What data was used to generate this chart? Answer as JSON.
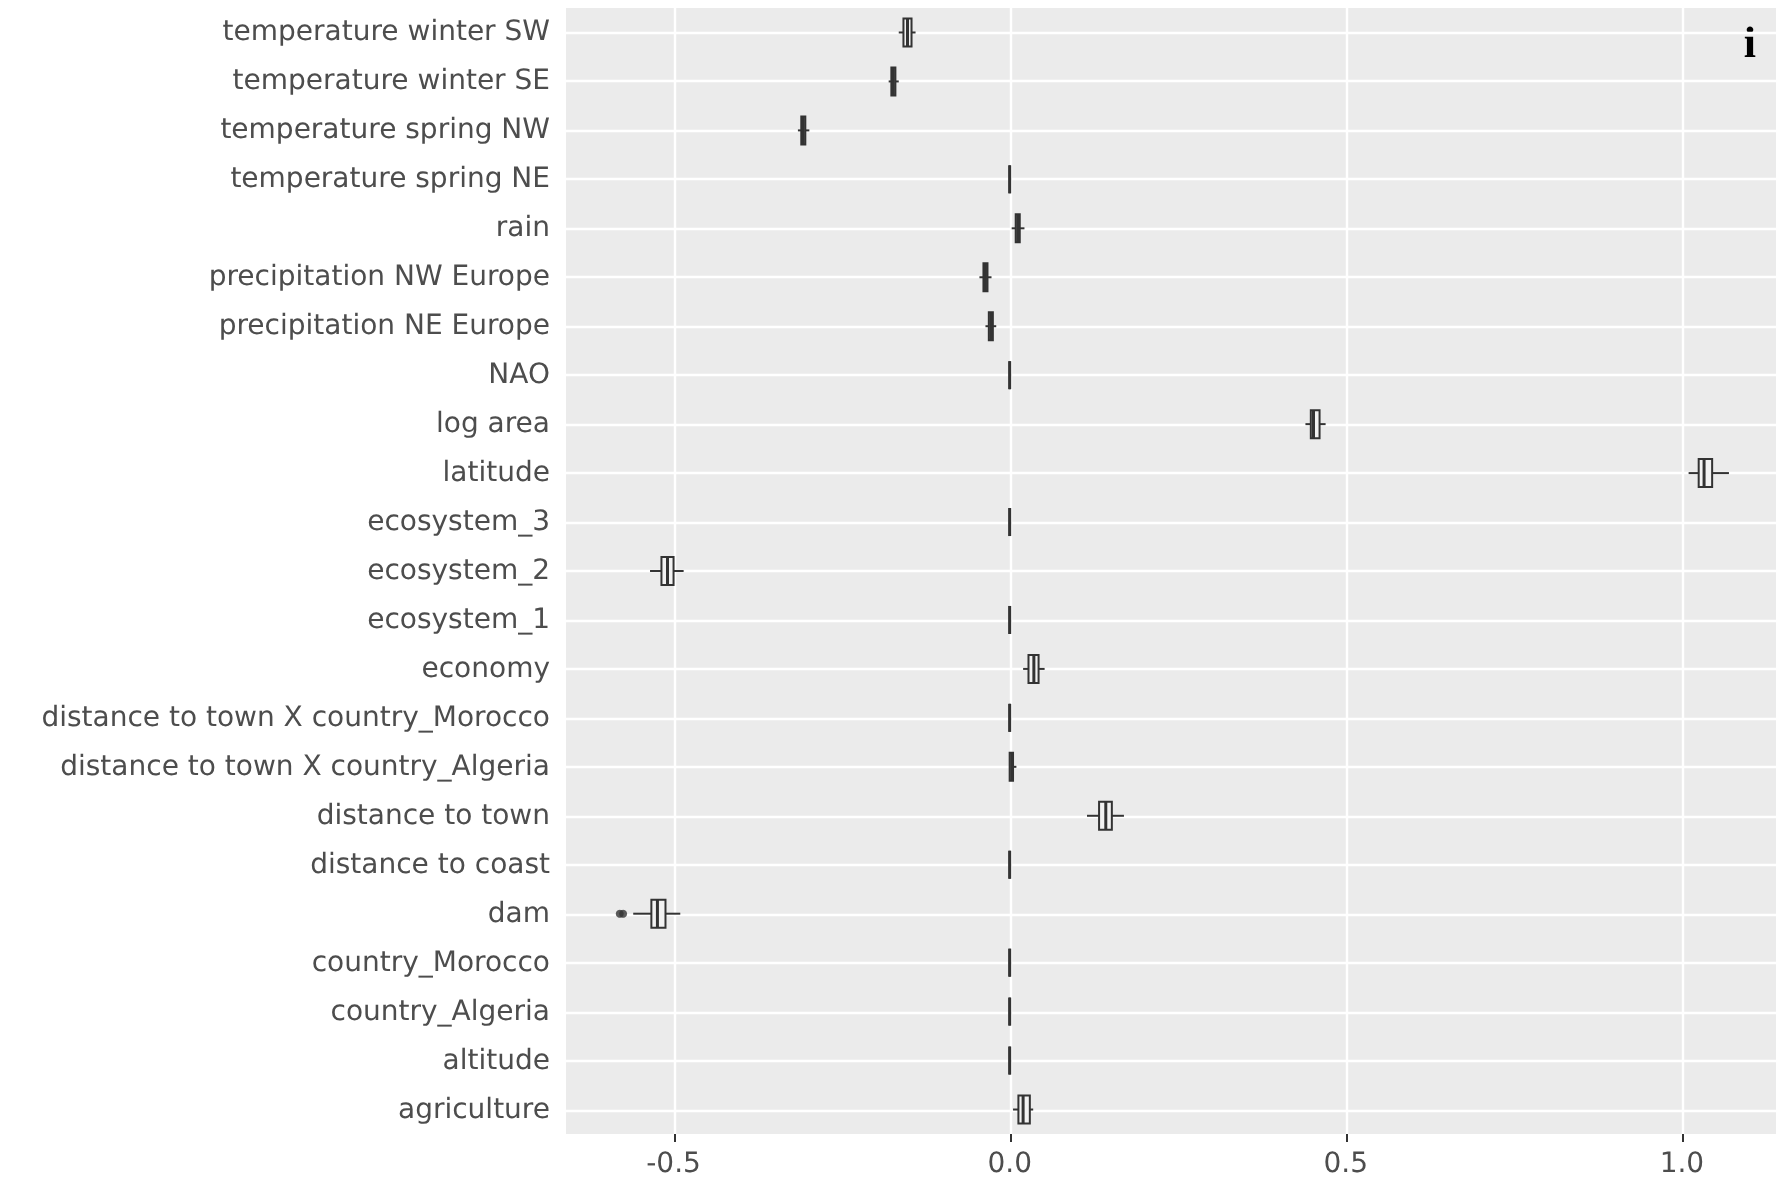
{
  "chart_data": {
    "type": "box",
    "orientation": "horizontal",
    "annotations": [
      "i"
    ],
    "categories": [
      "temperature winter SW",
      "temperature winter SE",
      "temperature spring NW",
      "temperature spring NE",
      "rain",
      "precipitation NW Europe",
      "precipitation NE Europe",
      "NAO",
      "log area",
      "latitude",
      "ecosystem_3",
      "ecosystem_2",
      "ecosystem_1",
      "economy",
      "distance to town X country_Morocco",
      "distance to town X country_Algeria",
      "distance to town",
      "distance to coast",
      "dam",
      "country_Morocco",
      "country_Algeria",
      "altitude",
      "agriculture"
    ],
    "boxes": [
      {
        "low": -0.165,
        "q1": -0.158,
        "median": -0.152,
        "q3": -0.146,
        "high": -0.14
      },
      {
        "low": -0.18,
        "q1": -0.176,
        "median": -0.173,
        "q3": -0.17,
        "high": -0.165
      },
      {
        "low": -0.315,
        "q1": -0.31,
        "median": -0.307,
        "q3": -0.304,
        "high": -0.298
      },
      {
        "low": 0,
        "q1": 0,
        "median": 0,
        "q3": 0,
        "high": 0
      },
      {
        "low": 0.003,
        "q1": 0.009,
        "median": 0.012,
        "q3": 0.015,
        "high": 0.022
      },
      {
        "low": -0.045,
        "q1": -0.039,
        "median": -0.036,
        "q3": -0.033,
        "high": -0.027
      },
      {
        "low": -0.036,
        "q1": -0.031,
        "median": -0.028,
        "q3": -0.025,
        "high": -0.02
      },
      {
        "low": 0,
        "q1": 0,
        "median": 0,
        "q3": 0,
        "high": 0
      },
      {
        "low": 0.44,
        "q1": 0.448,
        "median": 0.452,
        "q3": 0.461,
        "high": 0.47
      },
      {
        "low": 1.01,
        "q1": 1.025,
        "median": 1.033,
        "q3": 1.045,
        "high": 1.07
      },
      {
        "low": 0,
        "q1": 0,
        "median": 0,
        "q3": 0,
        "high": 0
      },
      {
        "low": -0.535,
        "q1": -0.518,
        "median": -0.509,
        "q3": -0.5,
        "high": -0.485
      },
      {
        "low": 0,
        "q1": 0,
        "median": 0,
        "q3": 0,
        "high": 0
      },
      {
        "low": 0.02,
        "q1": 0.028,
        "median": 0.036,
        "q3": 0.043,
        "high": 0.052
      },
      {
        "low": 0,
        "q1": 0,
        "median": 0,
        "q3": 0,
        "high": 0
      },
      {
        "low": 0,
        "q1": 0,
        "median": 0.003,
        "q3": 0.005,
        "high": 0.01
      },
      {
        "low": 0.115,
        "q1": 0.133,
        "median": 0.143,
        "q3": 0.152,
        "high": 0.17
      },
      {
        "low": 0,
        "q1": 0,
        "median": 0,
        "q3": 0,
        "high": 0
      },
      {
        "low": -0.56,
        "q1": -0.533,
        "median": -0.524,
        "q3": -0.512,
        "high": -0.49,
        "outliers": [
          -0.58,
          -0.575
        ]
      },
      {
        "low": 0,
        "q1": 0,
        "median": 0,
        "q3": 0,
        "high": 0
      },
      {
        "low": 0,
        "q1": 0,
        "median": 0,
        "q3": 0,
        "high": 0
      },
      {
        "low": 0,
        "q1": 0,
        "median": 0,
        "q3": 0,
        "high": 0
      },
      {
        "low": 0.005,
        "q1": 0.013,
        "median": 0.02,
        "q3": 0.03,
        "high": 0.035
      }
    ],
    "color": "#333333",
    "xlim": [
      -0.66,
      1.14
    ],
    "xticks": [
      {
        "value": -0.5,
        "label": "-0.5"
      },
      {
        "value": 0,
        "label": "0.0"
      },
      {
        "value": 0.5,
        "label": "0.5"
      },
      {
        "value": 1,
        "label": "1.0"
      }
    ],
    "grid": true
  }
}
